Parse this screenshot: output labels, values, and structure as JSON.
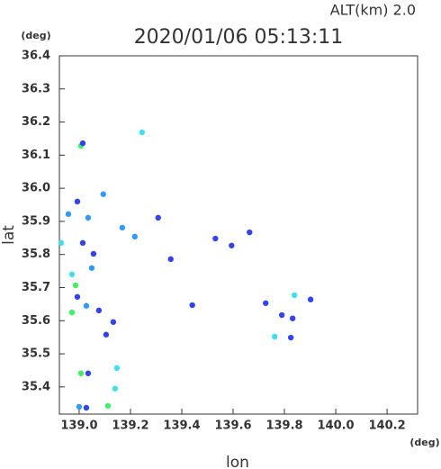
{
  "chart_data": {
    "type": "scatter",
    "title": "2020/01/06 05:13:11",
    "altitude_label": "ALT(km) 2.0",
    "y_unit": "(deg)",
    "x_unit": "(deg)",
    "x_label": "lon",
    "y_label": "lat",
    "xlim": [
      138.923,
      140.319
    ],
    "ylim": [
      35.318,
      36.4
    ],
    "xticks": [
      {
        "value": 139,
        "label": "139.0"
      },
      139.2,
      139.4,
      139.6,
      139.8,
      {
        "value": 140,
        "label": "140.0"
      },
      140.2
    ],
    "yticks": [
      35.4,
      35.5,
      35.6,
      35.7,
      35.8,
      35.9,
      {
        "value": 36,
        "label": "36.0"
      },
      36.1,
      36.2,
      36.3,
      36.4
    ],
    "x": [
      139.007,
      139.014,
      139.245,
      138.958,
      138.993,
      139.035,
      139.094,
      139.014,
      138.972,
      138.986,
      138.993,
      139.028,
      138.972,
      139.049,
      139.105,
      139.007,
      139.112,
      139.028,
      139.0,
      139.14,
      139.147,
      139.217,
      139.308,
      139.357,
      139.441,
      139.531,
      139.594,
      139.664,
      139.727,
      139.762,
      139.79,
      139.832,
      139.839,
      139.902,
      139.825,
      139.168,
      139.056,
      139.077,
      139.133,
      138.93,
      139.035
    ],
    "y": [
      36.128,
      36.136,
      36.169,
      35.922,
      35.96,
      35.911,
      35.982,
      35.835,
      35.74,
      35.707,
      35.672,
      35.645,
      35.625,
      35.759,
      35.558,
      35.441,
      35.343,
      35.337,
      35.34,
      35.395,
      35.457,
      35.854,
      35.911,
      35.786,
      35.647,
      35.848,
      35.827,
      35.867,
      35.653,
      35.552,
      35.617,
      35.607,
      35.677,
      35.664,
      35.549,
      35.881,
      35.802,
      35.631,
      35.596,
      35.835,
      35.441
    ],
    "colors": [
      "#44ee66",
      "#3344ee",
      "#44ddee",
      "#3399ff",
      "#3344ee",
      "#3399ff",
      "#3399ff",
      "#3344ee",
      "#44ddee",
      "#44ee66",
      "#3344ee",
      "#3399ff",
      "#44ee66",
      "#3399ff",
      "#3344ee",
      "#44ee66",
      "#44ee66",
      "#3344ee",
      "#3399ff",
      "#44ddee",
      "#44ddee",
      "#3399ff",
      "#3344ee",
      "#3344ee",
      "#3344ee",
      "#3344ee",
      "#3344ee",
      "#3344ee",
      "#3344ee",
      "#44ddee",
      "#3344ee",
      "#3344ee",
      "#44ddee",
      "#3344ee",
      "#3344ee",
      "#3399ff",
      "#3344ee",
      "#3344ee",
      "#3344ee",
      "#44ddee",
      "#3344ee"
    ]
  }
}
